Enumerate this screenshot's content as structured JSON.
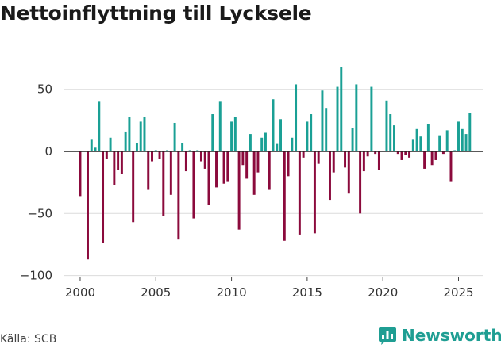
{
  "title": "Nettoinflyttning till Lycksele",
  "source": "Källa: SCB",
  "brand": {
    "name": "Newsworthy",
    "icon": "bar-chart-badge-icon"
  },
  "colors": {
    "positive": "#1aa095",
    "negative": "#8b0a3c",
    "brand": "#1f9e93",
    "grid": "#dcdcdc",
    "zero": "#222222"
  },
  "chart_data": {
    "type": "bar",
    "title": "Nettoinflyttning till Lycksele",
    "xlabel": "",
    "ylabel": "",
    "xlim": [
      1998.9,
      2026.6
    ],
    "ylim": [
      -100,
      70
    ],
    "yticks": [
      50,
      0,
      -50,
      -100
    ],
    "ytick_labels": [
      "50",
      "0",
      "−50",
      "−100"
    ],
    "xticks": [
      2000,
      2005,
      2010,
      2015,
      2020,
      2025
    ],
    "xtick_labels": [
      "2000",
      "2005",
      "2010",
      "2015",
      "2020",
      "2025"
    ],
    "grid": true,
    "legend": "none",
    "frequency": "quarterly",
    "start": 2000.0,
    "values": [
      -36,
      0,
      -87,
      10,
      3,
      40,
      -74,
      -6,
      11,
      -27,
      -15,
      -18,
      16,
      28,
      -57,
      7,
      24,
      28,
      -31,
      -8,
      1,
      -6,
      -52,
      1,
      -35,
      23,
      -71,
      7,
      -16,
      1,
      -54,
      1,
      -8,
      -14,
      -43,
      30,
      -29,
      40,
      -26,
      -24,
      24,
      28,
      -63,
      -11,
      -22,
      14,
      -35,
      -17,
      11,
      15,
      -31,
      42,
      6,
      26,
      -72,
      -20,
      11,
      54,
      -67,
      -5,
      24,
      30,
      -66,
      -10,
      49,
      35,
      -39,
      -17,
      52,
      68,
      -13,
      -34,
      19,
      54,
      -50,
      -16,
      -4,
      52,
      -2,
      -15,
      0,
      41,
      30,
      21,
      -2,
      -7,
      -3,
      -5,
      10,
      18,
      12,
      -14,
      22,
      -11,
      -7,
      13,
      -2,
      17,
      -24,
      1,
      24,
      18,
      14,
      31
    ]
  }
}
